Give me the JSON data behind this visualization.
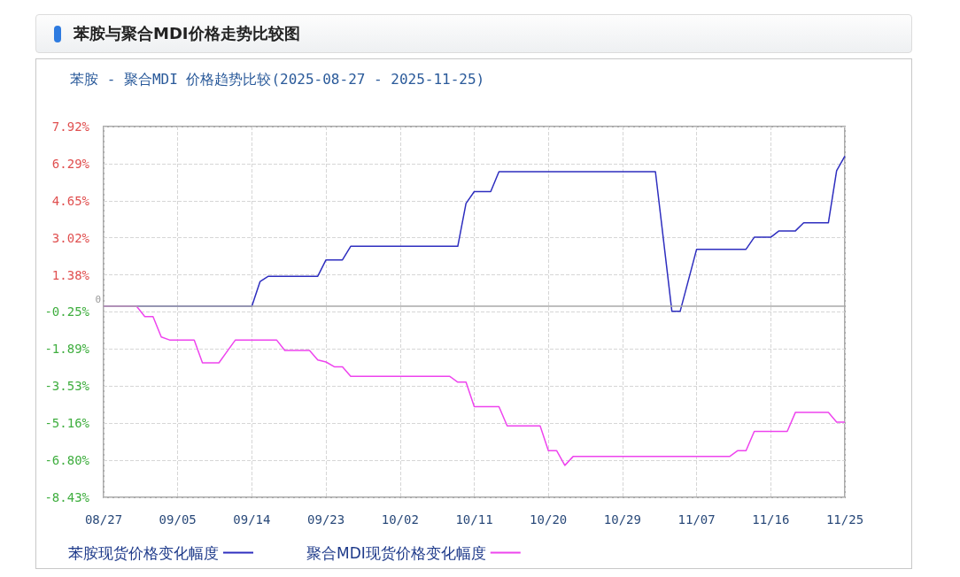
{
  "chart_data": {
    "type": "line",
    "title": "苯胺与聚合MDI价格走势比较图",
    "subtitle": "苯胺 - 聚合MDI 价格趋势比较(2025-08-27 - 2025-11-25)",
    "series": [
      {
        "name": "苯胺现货价格变化幅度",
        "color": "#2e2ebf",
        "x": [
          "2025-08-27",
          "2025-09-14",
          "2025-09-15",
          "2025-09-16",
          "2025-09-22",
          "2025-09-23",
          "2025-09-25",
          "2025-09-26",
          "2025-10-09",
          "2025-10-10",
          "2025-10-11",
          "2025-10-13",
          "2025-10-14",
          "2025-11-02",
          "2025-11-04",
          "2025-11-05",
          "2025-11-07",
          "2025-11-13",
          "2025-11-14",
          "2025-11-16",
          "2025-11-17",
          "2025-11-19",
          "2025-11-20",
          "2025-11-23",
          "2025-11-24",
          "2025-11-25"
        ],
        "values": [
          0,
          0,
          1.09,
          1.32,
          1.32,
          2.04,
          2.04,
          2.64,
          2.64,
          4.53,
          5.05,
          5.05,
          5.93,
          5.93,
          -0.23,
          -0.23,
          2.51,
          2.51,
          3.04,
          3.04,
          3.32,
          3.32,
          3.68,
          3.68,
          5.97,
          6.62
        ]
      },
      {
        "name": "聚合MDI现货价格变化幅度",
        "color": "#ee44ee",
        "x": [
          "2025-08-27",
          "2025-08-31",
          "2025-09-01",
          "2025-09-02",
          "2025-09-03",
          "2025-09-04",
          "2025-09-07",
          "2025-09-08",
          "2025-09-10",
          "2025-09-12",
          "2025-09-17",
          "2025-09-18",
          "2025-09-21",
          "2025-09-22",
          "2025-09-23",
          "2025-09-24",
          "2025-09-25",
          "2025-09-26",
          "2025-10-08",
          "2025-10-09",
          "2025-10-10",
          "2025-10-11",
          "2025-10-14",
          "2025-10-15",
          "2025-10-19",
          "2025-10-20",
          "2025-10-21",
          "2025-10-22",
          "2025-10-23",
          "2025-11-11",
          "2025-11-12",
          "2025-11-13",
          "2025-11-14",
          "2025-11-18",
          "2025-11-19",
          "2025-11-23",
          "2025-11-24",
          "2025-11-25"
        ],
        "values": [
          0,
          0,
          -0.46,
          -0.46,
          -1.36,
          -1.49,
          -1.49,
          -2.5,
          -2.5,
          -1.49,
          -1.49,
          -1.95,
          -1.95,
          -2.37,
          -2.46,
          -2.67,
          -2.67,
          -3.09,
          -3.09,
          -3.35,
          -3.35,
          -4.43,
          -4.43,
          -5.28,
          -5.28,
          -6.37,
          -6.37,
          -7.02,
          -6.63,
          -6.63,
          -6.37,
          -6.37,
          -5.52,
          -5.52,
          -4.68,
          -4.68,
          -5.11,
          -5.11
        ]
      }
    ],
    "xlim": [
      "2025-08-27",
      "2025-11-25"
    ],
    "xticks": [
      {
        "value": "2025-08-27",
        "label": "08/27"
      },
      {
        "value": "2025-09-05",
        "label": "09/05"
      },
      {
        "value": "2025-09-14",
        "label": "09/14"
      },
      {
        "value": "2025-09-23",
        "label": "09/23"
      },
      {
        "value": "2025-10-02",
        "label": "10/02"
      },
      {
        "value": "2025-10-11",
        "label": "10/11"
      },
      {
        "value": "2025-10-20",
        "label": "10/20"
      },
      {
        "value": "2025-10-29",
        "label": "10/29"
      },
      {
        "value": "2025-11-07",
        "label": "11/07"
      },
      {
        "value": "2025-11-16",
        "label": "11/16"
      },
      {
        "value": "2025-11-25",
        "label": "11/25"
      }
    ],
    "ylim": [
      -8.43,
      7.92
    ],
    "yticks": [
      {
        "value": -8.43,
        "label": "-8.43%"
      },
      {
        "value": -6.8,
        "label": "-6.80%"
      },
      {
        "value": -5.16,
        "label": "-5.16%"
      },
      {
        "value": -3.53,
        "label": "-3.53%"
      },
      {
        "value": -1.89,
        "label": "-1.89%"
      },
      {
        "value": -0.25,
        "label": "-0.25%"
      },
      {
        "value": 1.38,
        "label": "1.38%"
      },
      {
        "value": 3.02,
        "label": "3.02%"
      },
      {
        "value": 4.65,
        "label": "4.65%"
      },
      {
        "value": 6.29,
        "label": "6.29%"
      },
      {
        "value": 7.92,
        "label": "7.92%"
      }
    ],
    "ref_lines": [
      {
        "axis": "y",
        "value": 0,
        "label": "0",
        "color": "#a8a8a8"
      }
    ],
    "grid": true,
    "legend": "bottom",
    "line_style": "solid"
  }
}
